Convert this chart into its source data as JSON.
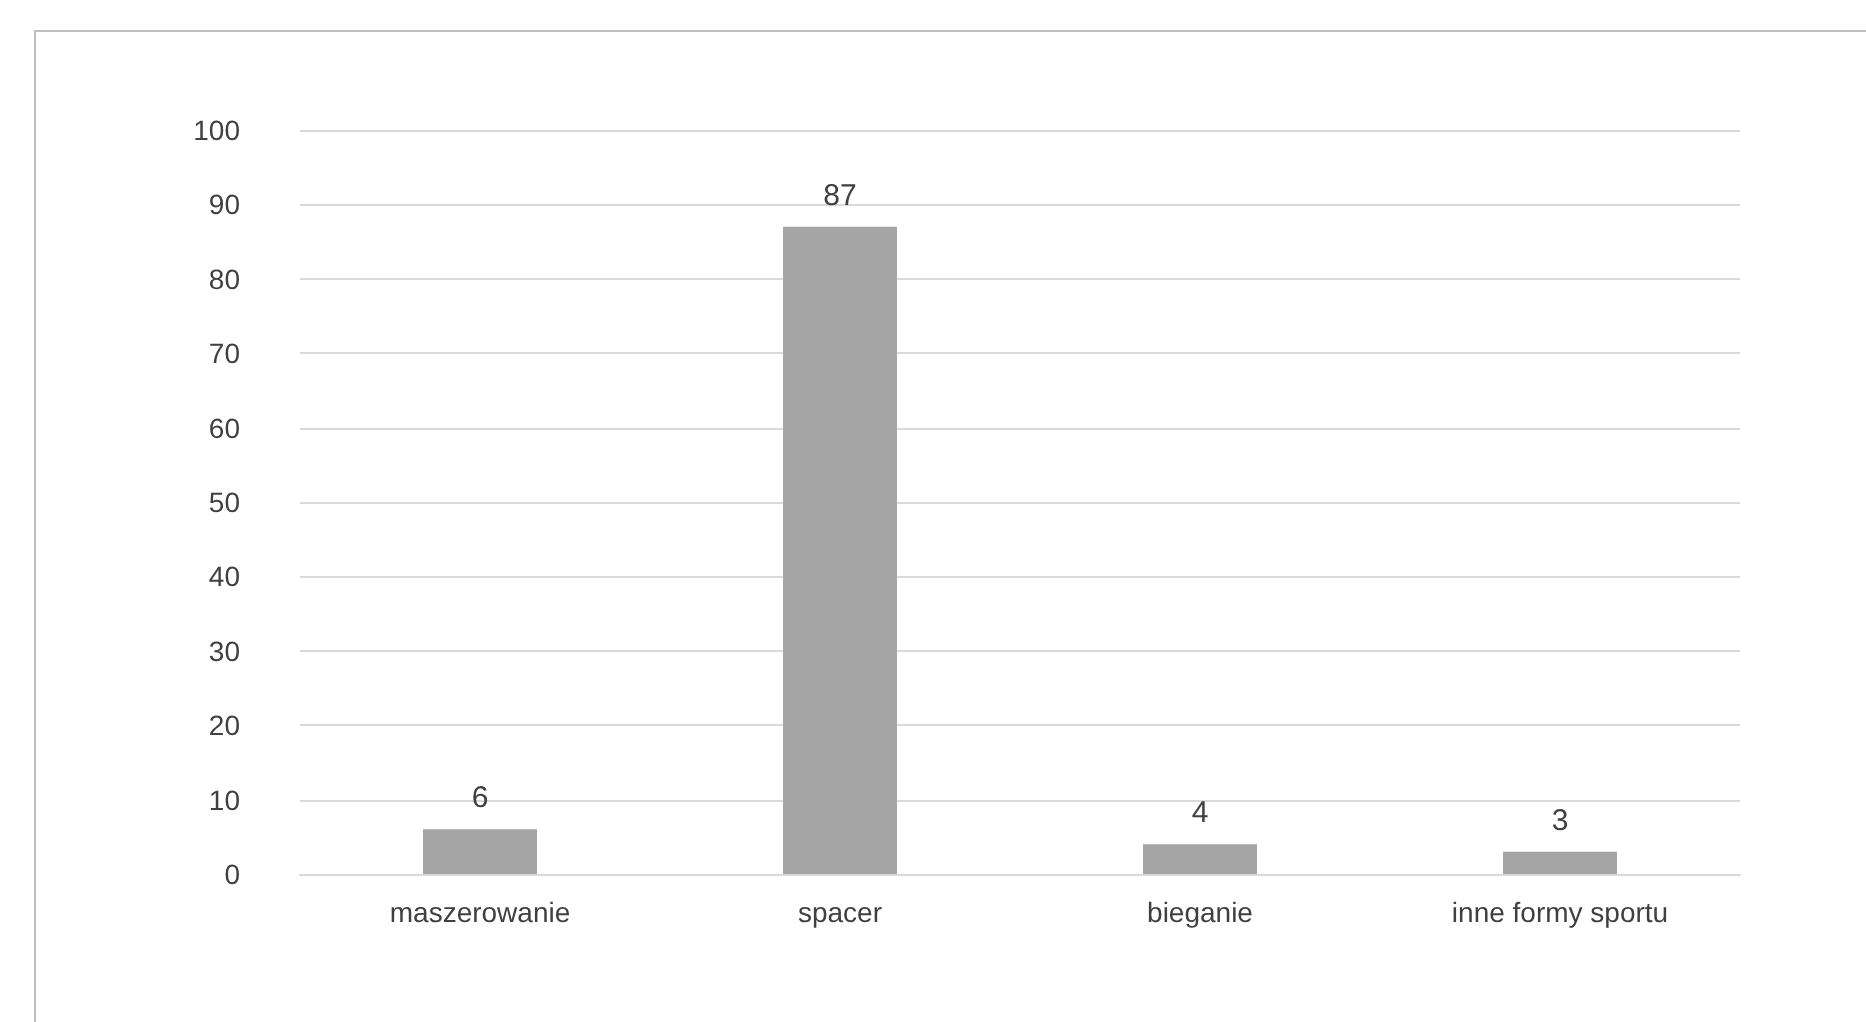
{
  "chart_data": {
    "type": "bar",
    "categories": [
      "maszerowanie",
      "spacer",
      "bieganie",
      "inne formy sportu"
    ],
    "values": [
      6,
      87,
      4,
      3
    ],
    "color": "#a5a5a5",
    "ylim": [
      0,
      100
    ],
    "yticks": [
      0,
      10,
      20,
      30,
      40,
      50,
      60,
      70,
      80,
      90,
      100
    ],
    "grid": "y",
    "data_labels": true
  }
}
